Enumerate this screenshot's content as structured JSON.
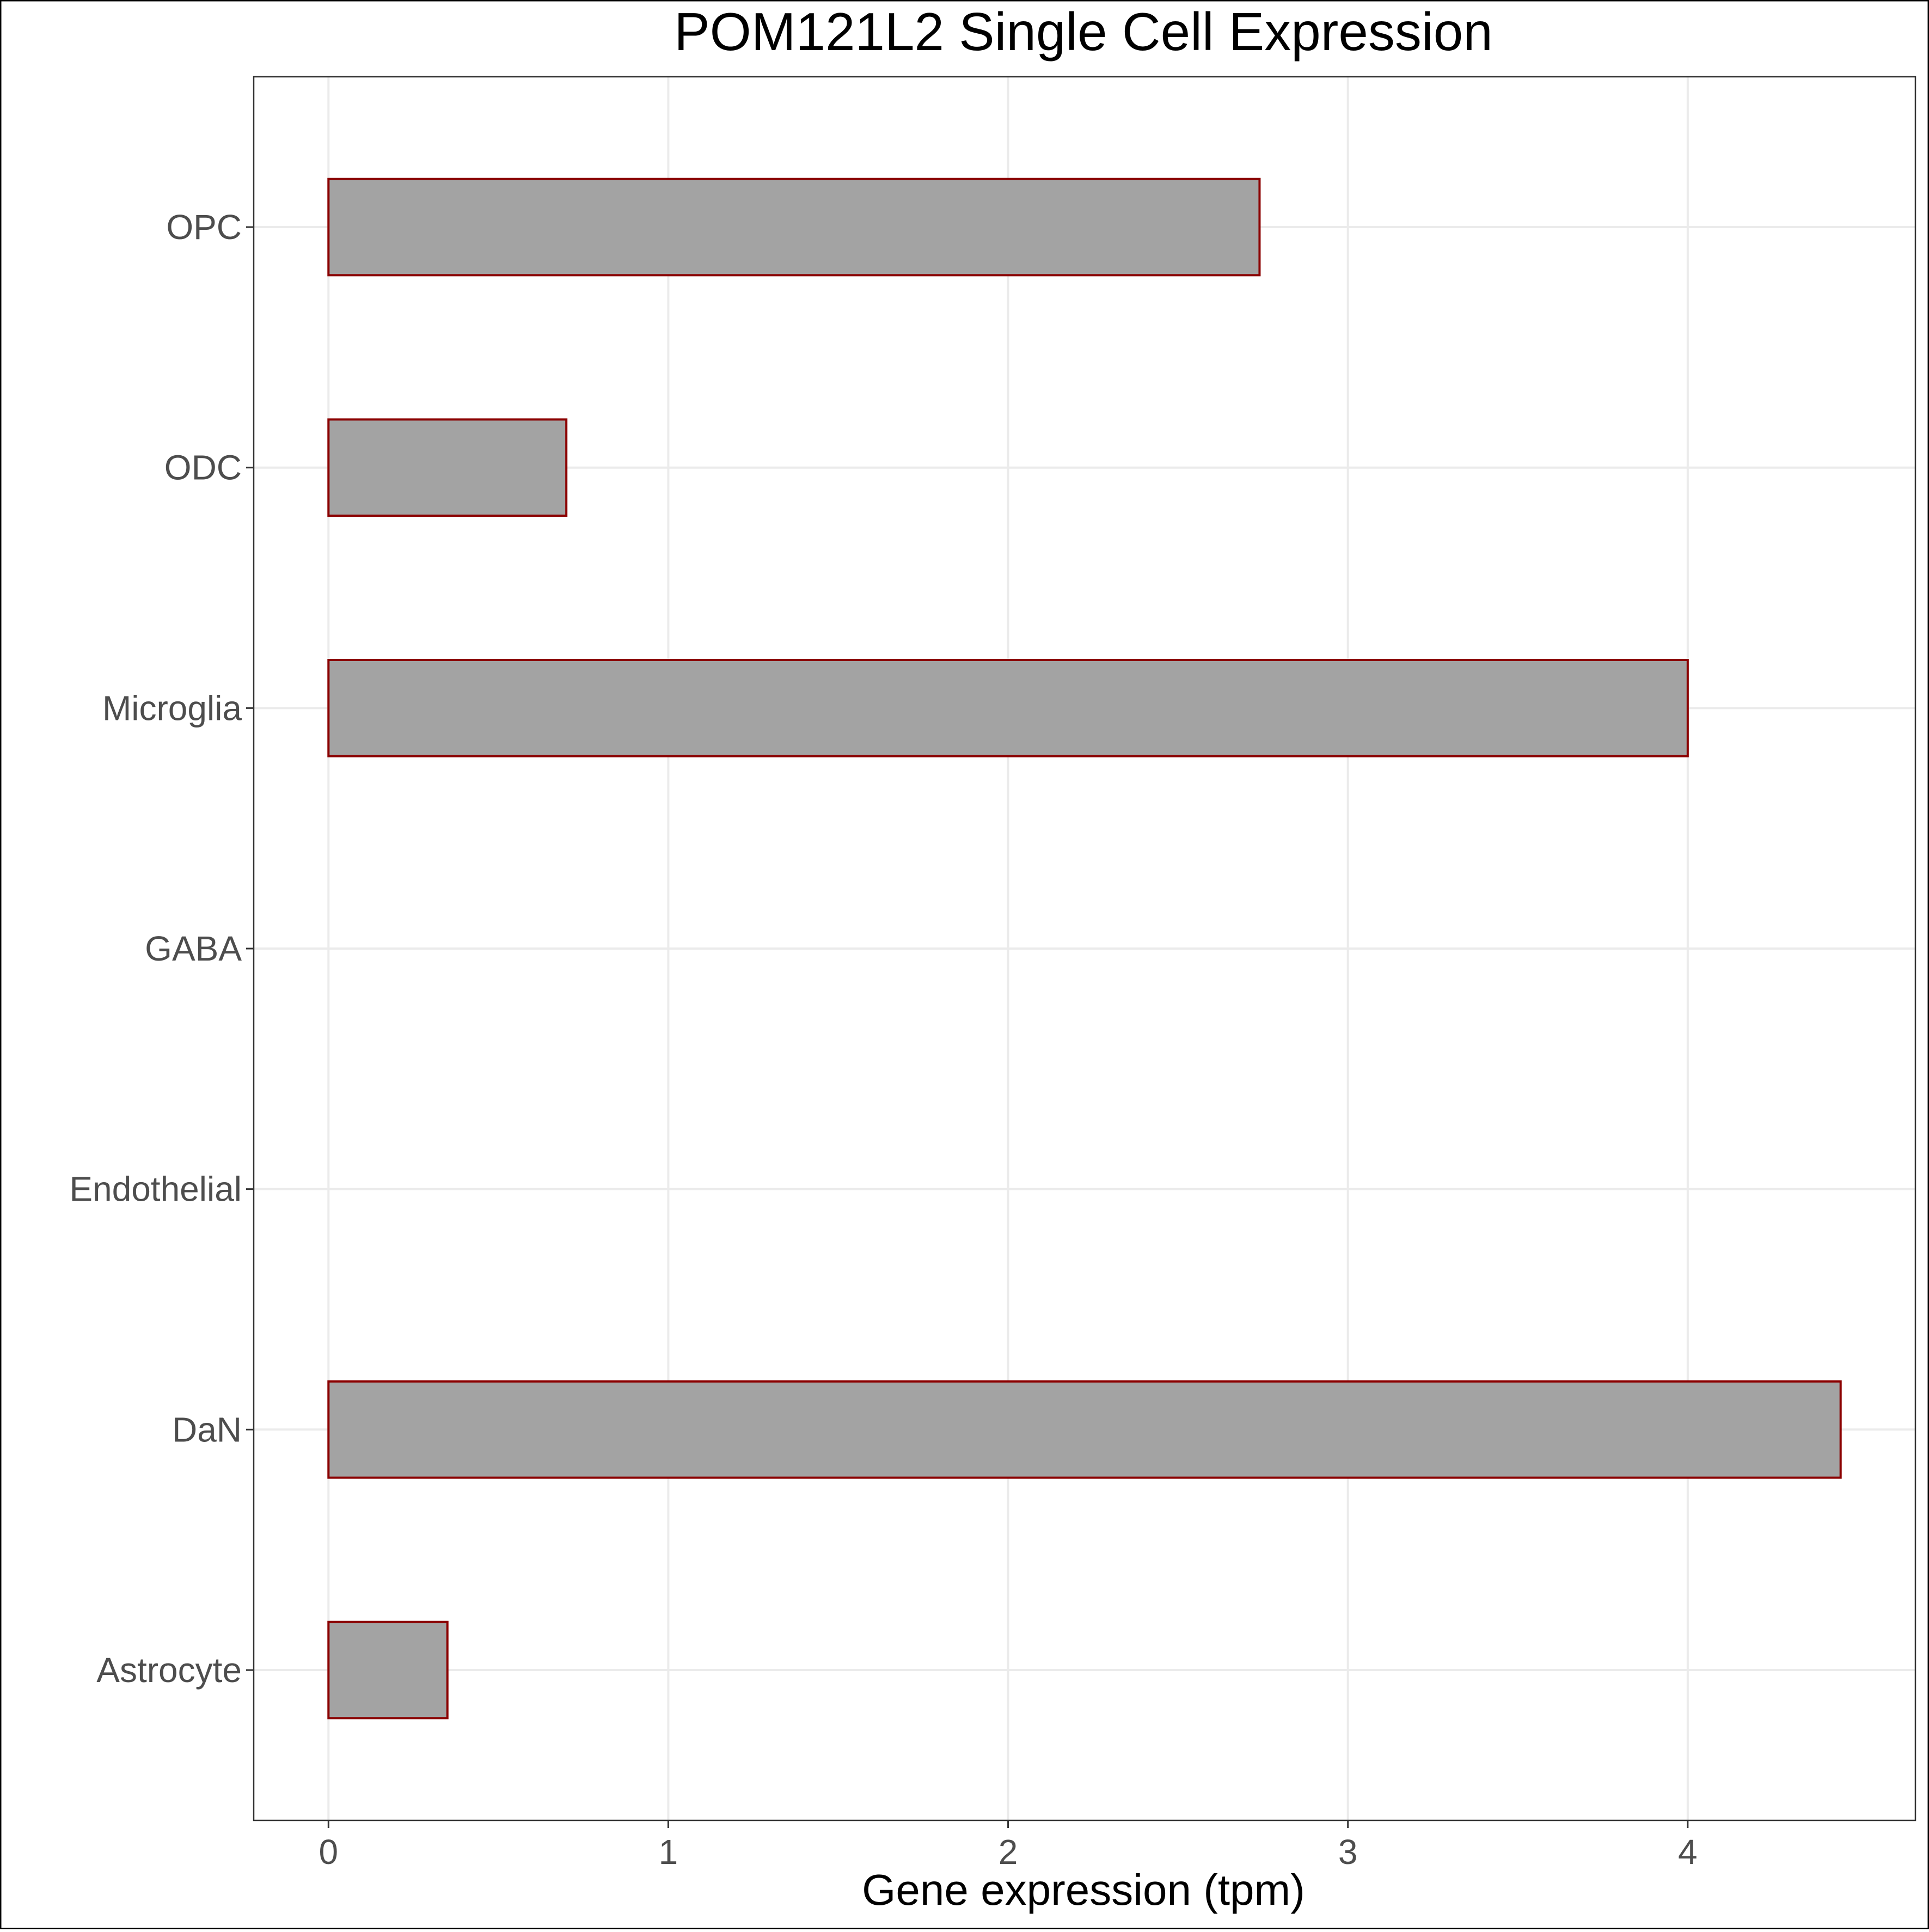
{
  "chart_data": {
    "type": "bar",
    "orientation": "horizontal",
    "title": "POM121L2 Single Cell Expression",
    "xlabel": "Gene expression (tpm)",
    "ylabel": "",
    "categories": [
      "Astrocyte",
      "DaN",
      "Endothelial",
      "GABA",
      "Microglia",
      "ODC",
      "OPC"
    ],
    "values": [
      0.35,
      4.45,
      0.0,
      0.0,
      4.0,
      0.7,
      2.74
    ],
    "xlim": [
      -0.22,
      4.67
    ],
    "xticks": [
      0,
      1,
      2,
      3,
      4
    ],
    "xtick_labels": [
      "0",
      "1",
      "2",
      "3",
      "4"
    ],
    "grid": true,
    "legend": "none",
    "colors": {
      "bar_fill": "#a3a3a3",
      "bar_stroke": "#8b0000",
      "grid": "#ebebeb",
      "panel_border": "#333333"
    }
  }
}
